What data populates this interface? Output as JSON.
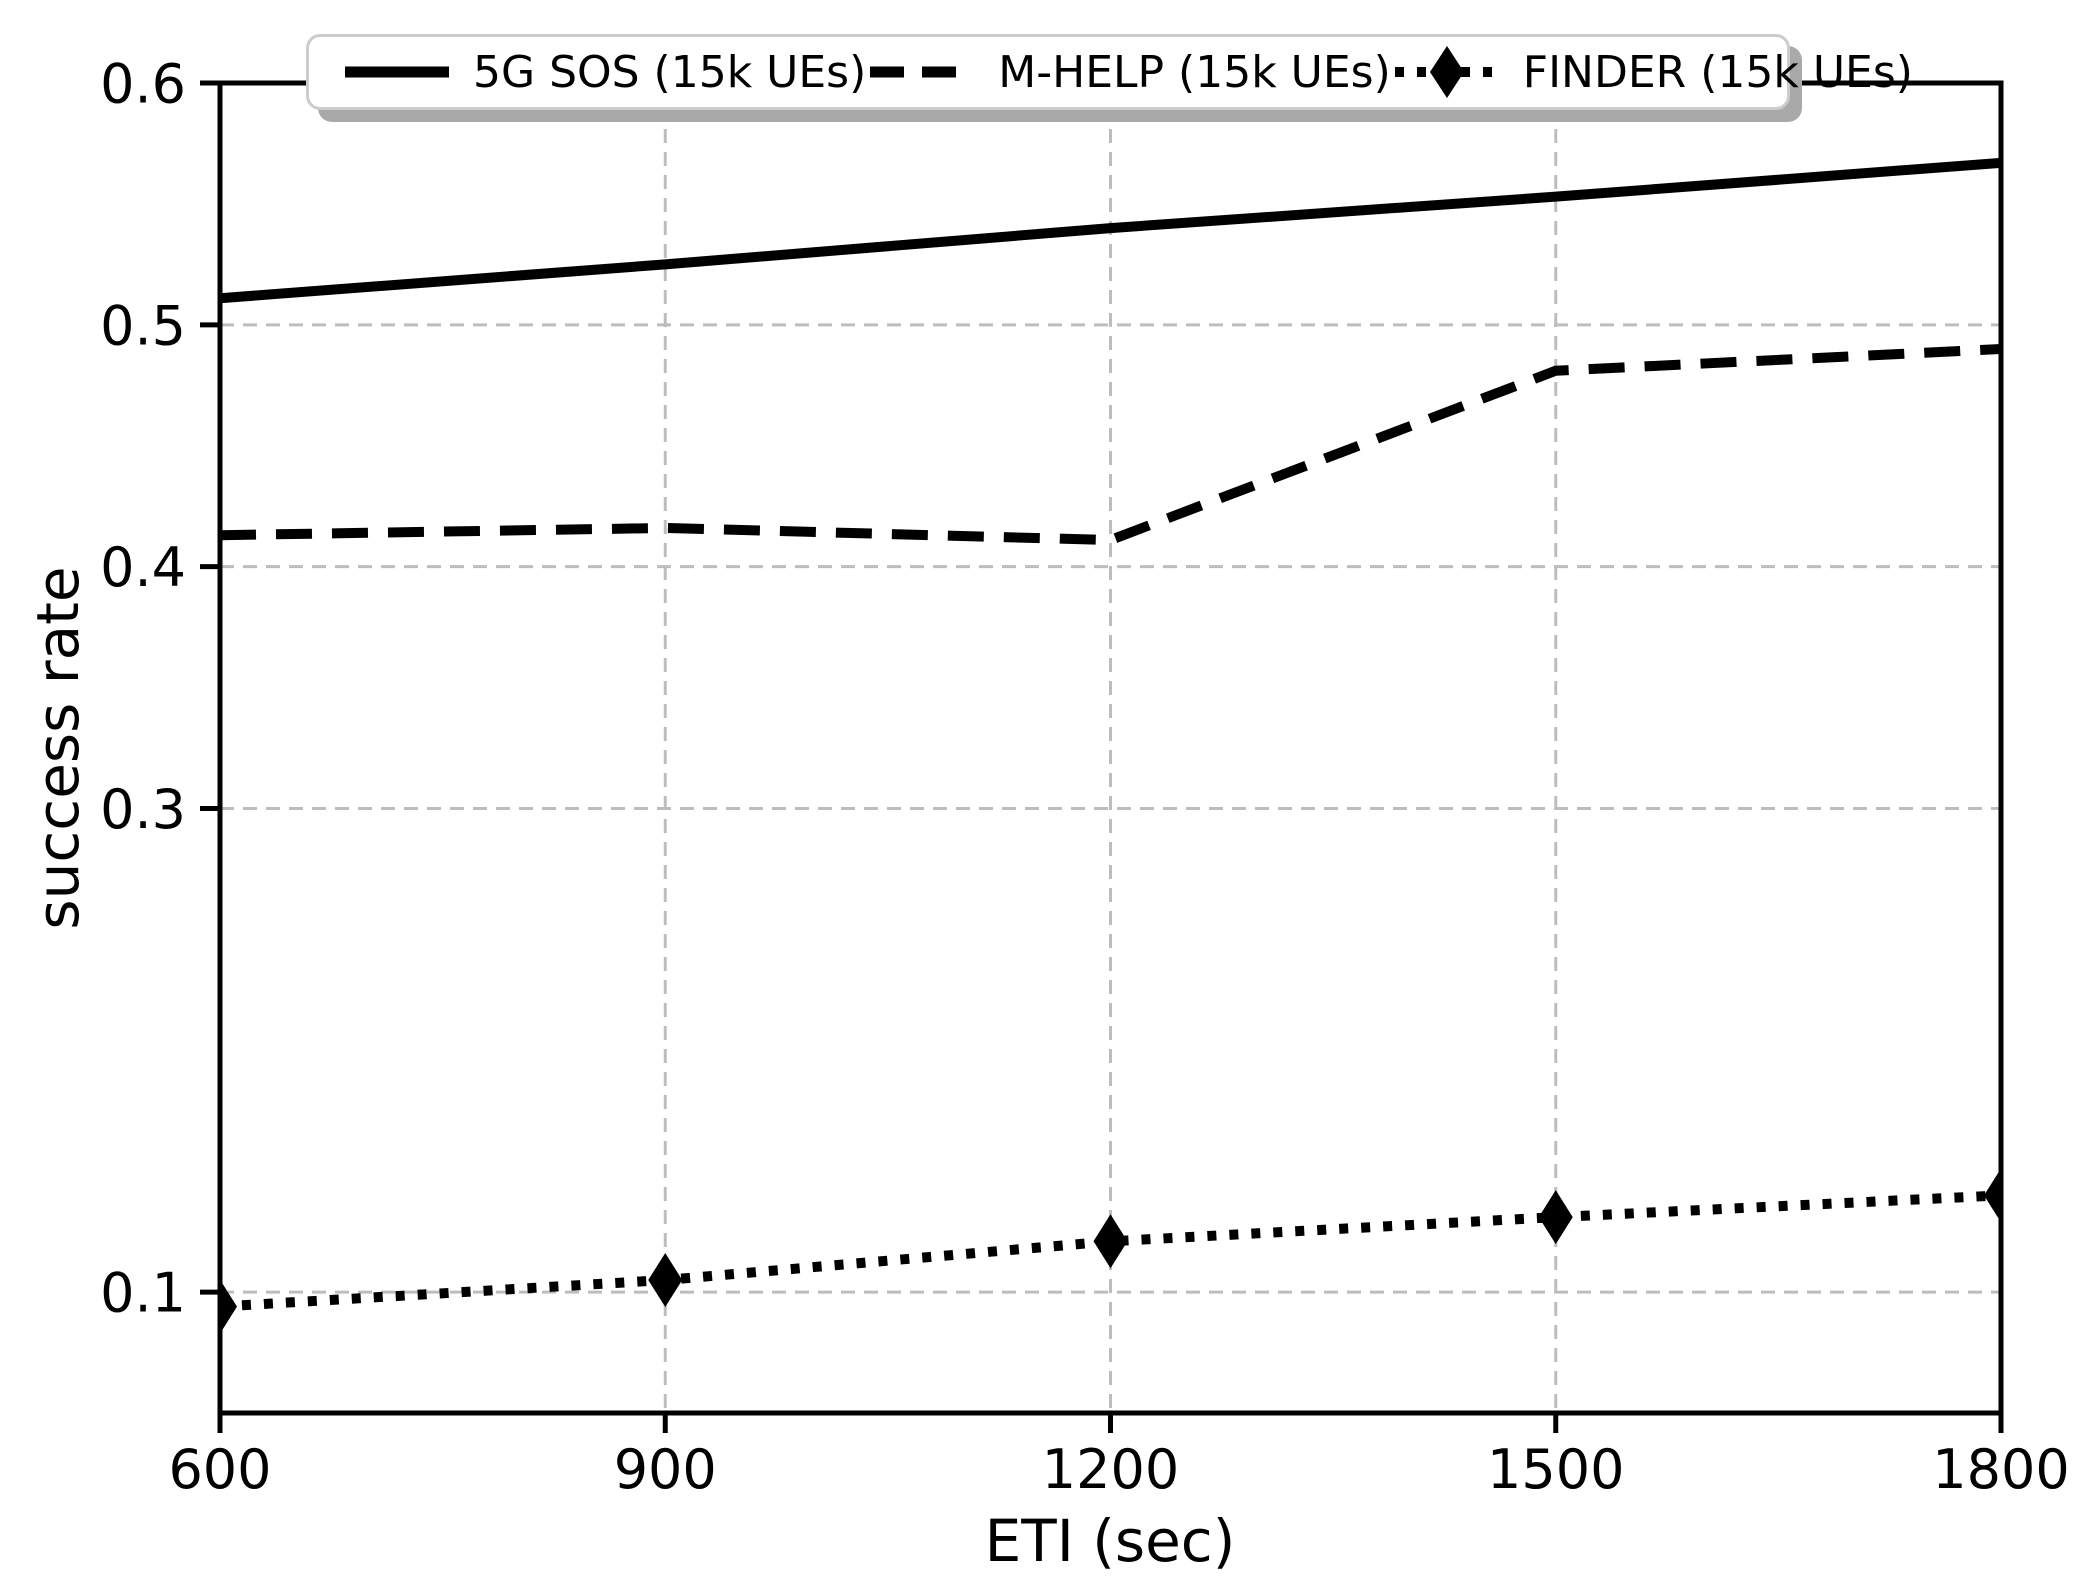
{
  "chart_data": {
    "type": "line",
    "x": [
      600,
      900,
      1200,
      1500,
      1800
    ],
    "series": [
      {
        "name": "5G SOS (15k UEs)",
        "style": "solid",
        "marker": "none",
        "values": [
          0.511,
          0.525,
          0.54,
          0.553,
          0.567
        ]
      },
      {
        "name": "M-HELP (15k UEs)",
        "style": "dashed",
        "marker": "none",
        "values": [
          0.413,
          0.416,
          0.411,
          0.481,
          0.49
        ]
      },
      {
        "name": "FINDER (15k UEs)",
        "style": "dotted",
        "marker": "diamond",
        "values": [
          0.094,
          0.105,
          0.121,
          0.131,
          0.14
        ]
      }
    ],
    "xlabel": "ETI (sec)",
    "ylabel": "success rate",
    "x_ticks": [
      600,
      900,
      1200,
      1500,
      1800
    ],
    "y_ticks": [
      0.1,
      0.3,
      0.4,
      0.5,
      0.6
    ],
    "xlim": [
      600,
      1800
    ],
    "ylim": [
      0.05,
      0.6
    ],
    "grid": true,
    "legend_position": "top",
    "line_color": "#000000",
    "grid_color": "#bdbdbd",
    "background": "#ffffff"
  }
}
